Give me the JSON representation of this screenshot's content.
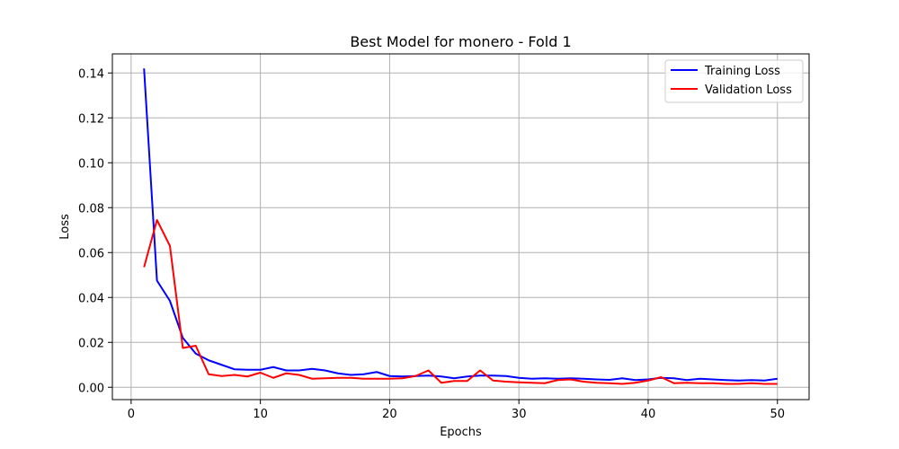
{
  "chart_data": {
    "type": "line",
    "title": "Best Model for monero - Fold 1",
    "xlabel": "Epochs",
    "ylabel": "Loss",
    "xlim": [
      -1.45,
      52.45
    ],
    "ylim": [
      -0.0055,
      0.1485
    ],
    "xticks": [
      0,
      10,
      20,
      30,
      40,
      50
    ],
    "yticks": [
      0.0,
      0.02,
      0.04,
      0.06,
      0.08,
      0.1,
      0.12,
      0.14
    ],
    "ytick_labels": [
      "0.00",
      "0.02",
      "0.04",
      "0.06",
      "0.08",
      "0.10",
      "0.12",
      "0.14"
    ],
    "grid": true,
    "legend_position": "top-right",
    "x": [
      1,
      2,
      3,
      4,
      5,
      6,
      7,
      8,
      9,
      10,
      11,
      12,
      13,
      14,
      15,
      16,
      17,
      18,
      19,
      20,
      21,
      22,
      23,
      24,
      25,
      26,
      27,
      28,
      29,
      30,
      31,
      32,
      33,
      34,
      35,
      36,
      37,
      38,
      39,
      40,
      41,
      42,
      43,
      44,
      45,
      46,
      47,
      48,
      49,
      50
    ],
    "series": [
      {
        "name": "Training Loss",
        "color": "#0000ff",
        "values": [
          0.142,
          0.0475,
          0.0385,
          0.022,
          0.015,
          0.012,
          0.01,
          0.008,
          0.0078,
          0.0078,
          0.009,
          0.0075,
          0.0075,
          0.0082,
          0.0075,
          0.0062,
          0.0055,
          0.0058,
          0.0068,
          0.005,
          0.0048,
          0.005,
          0.0052,
          0.0048,
          0.004,
          0.0048,
          0.0052,
          0.0052,
          0.005,
          0.0042,
          0.0038,
          0.004,
          0.0038,
          0.004,
          0.0038,
          0.0035,
          0.0033,
          0.004,
          0.0032,
          0.0035,
          0.0042,
          0.004,
          0.0032,
          0.0038,
          0.0035,
          0.0032,
          0.003,
          0.0032,
          0.003,
          0.0038
        ]
      },
      {
        "name": "Validation Loss",
        "color": "#ff0000",
        "values": [
          0.0535,
          0.0745,
          0.063,
          0.0175,
          0.0185,
          0.0058,
          0.005,
          0.0055,
          0.0048,
          0.0065,
          0.0042,
          0.0062,
          0.0055,
          0.0038,
          0.004,
          0.0042,
          0.0042,
          0.0038,
          0.0038,
          0.0038,
          0.004,
          0.005,
          0.0075,
          0.002,
          0.0028,
          0.0028,
          0.0075,
          0.003,
          0.0025,
          0.0022,
          0.002,
          0.0018,
          0.0032,
          0.0035,
          0.0025,
          0.002,
          0.0018,
          0.0015,
          0.002,
          0.003,
          0.0045,
          0.0018,
          0.002,
          0.0018,
          0.0018,
          0.0015,
          0.0015,
          0.0018,
          0.0015,
          0.0015
        ]
      }
    ]
  }
}
